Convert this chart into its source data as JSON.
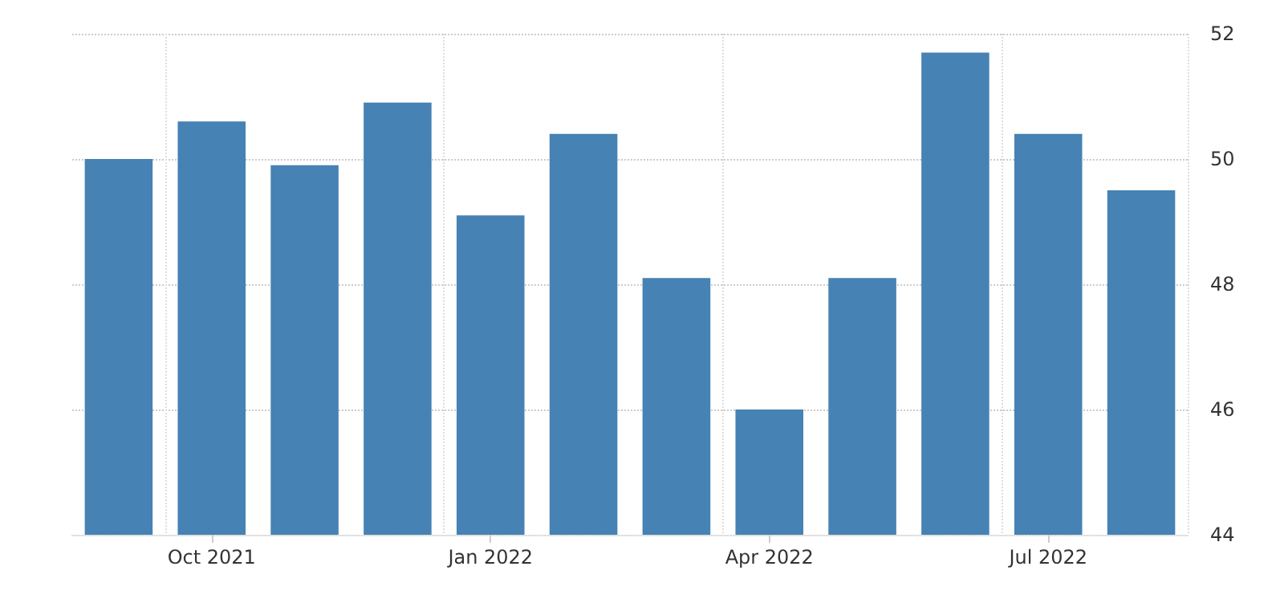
{
  "chart_data": {
    "type": "bar",
    "categories": [
      null,
      "Oct 2021",
      null,
      null,
      "Jan 2022",
      null,
      null,
      "Apr 2022",
      null,
      null,
      "Jul 2022",
      null
    ],
    "values": [
      50.0,
      50.6,
      49.9,
      50.9,
      49.1,
      50.4,
      48.1,
      46.0,
      48.1,
      51.7,
      50.4,
      49.5
    ],
    "color": "#4682b4",
    "ylim": [
      44,
      52
    ],
    "yticks": [
      44,
      46,
      48,
      50,
      52
    ],
    "grid": true
  }
}
